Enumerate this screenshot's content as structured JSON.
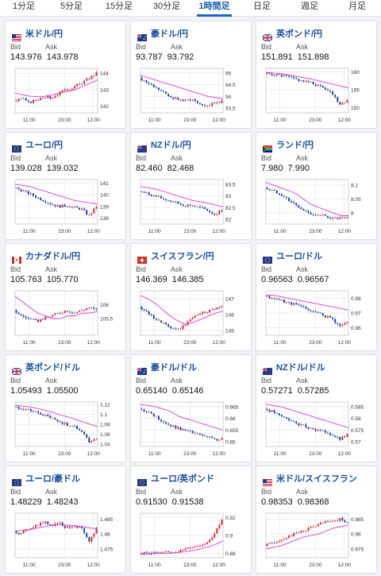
{
  "tabs": [
    {
      "label": "1分足",
      "active": false
    },
    {
      "label": "5分足",
      "active": false
    },
    {
      "label": "15分足",
      "active": false
    },
    {
      "label": "30分足",
      "active": false
    },
    {
      "label": "1時間足",
      "active": true
    },
    {
      "label": "日足",
      "active": false
    },
    {
      "label": "週足",
      "active": false
    },
    {
      "label": "月足",
      "active": false
    }
  ],
  "labels": {
    "bid": "Bid",
    "ask": "Ask"
  },
  "colors": {
    "up": "#e8202e",
    "down": "#1a3f9e",
    "ma": "#d63ad6",
    "grid": "#d9dde2",
    "link": "#1a4fa0"
  },
  "cards": [
    {
      "pair": "米ドル/円",
      "flag": "us",
      "bid": "143.976",
      "ask": "143.978",
      "chart_data": {
        "type": "candlestick",
        "x_ticks": [
          "11:00",
          "23:00",
          "12:00"
        ],
        "y_ticks": [
          "144",
          "143",
          "142"
        ],
        "y_range": [
          141.6,
          144.3
        ],
        "trend": [
          142.3,
          142.5,
          142.2,
          142.4,
          142.6,
          142.5,
          142.8,
          143.0,
          143.2,
          143.4,
          143.7,
          144.0
        ],
        "ma": [
          142.8,
          142.7,
          142.6,
          142.6,
          142.6,
          142.7,
          142.8,
          142.9,
          143.0,
          143.2,
          143.4,
          143.6
        ]
      }
    },
    {
      "pair": "豪ドル/円",
      "flag": "au",
      "bid": "93.787",
      "ask": "93.792",
      "chart_data": {
        "type": "candlestick",
        "x_ticks": [
          "11:00",
          "23:00",
          "12:00"
        ],
        "y_ticks": [
          "95",
          "94.5",
          "94",
          "93.5"
        ],
        "y_range": [
          93.3,
          95.2
        ],
        "trend": [
          94.8,
          94.6,
          94.4,
          94.2,
          94.0,
          93.9,
          93.8,
          93.9,
          93.7,
          93.6,
          93.7,
          93.8
        ],
        "ma": [
          94.9,
          94.8,
          94.7,
          94.6,
          94.5,
          94.4,
          94.3,
          94.2,
          94.1,
          94.0,
          93.95,
          93.9
        ]
      }
    },
    {
      "pair": "英ポンド/円",
      "flag": "gb",
      "bid": "151.891",
      "ask": "151.898",
      "chart_data": {
        "type": "candlestick",
        "x_ticks": [
          "11:00",
          "23:00",
          "12:00"
        ],
        "y_ticks": [
          "160",
          "155",
          "150"
        ],
        "y_range": [
          148.5,
          161
        ],
        "trend": [
          159.5,
          159.3,
          159.0,
          158.6,
          158.0,
          157.5,
          157.0,
          156.2,
          155.5,
          154.0,
          151.0,
          152.0
        ],
        "ma": [
          159.8,
          159.7,
          159.5,
          159.2,
          158.8,
          158.4,
          158.0,
          157.5,
          157.0,
          156.5,
          156.0,
          155.5
        ]
      }
    },
    {
      "pair": "ユーロ/円",
      "flag": "eu",
      "bid": "139.028",
      "ask": "139.032",
      "chart_data": {
        "type": "candlestick",
        "x_ticks": [
          "11:00",
          "23:00",
          "12:00"
        ],
        "y_ticks": [
          "141",
          "140",
          "139",
          "138"
        ],
        "y_range": [
          137.5,
          141.3
        ],
        "trend": [
          140.6,
          140.4,
          140.1,
          139.8,
          139.5,
          139.2,
          139.0,
          139.1,
          138.9,
          138.8,
          138.2,
          139.0
        ],
        "ma": [
          140.9,
          140.8,
          140.7,
          140.5,
          140.3,
          140.1,
          139.9,
          139.7,
          139.5,
          139.4,
          139.3,
          139.2
        ]
      }
    },
    {
      "pair": "NZドル/円",
      "flag": "nz",
      "bid": "82.460",
      "ask": "82.468",
      "chart_data": {
        "type": "candlestick",
        "x_ticks": [
          "11:00",
          "23:00",
          "12:00"
        ],
        "y_ticks": [
          "83.5",
          "83",
          "82.5",
          "82"
        ],
        "y_range": [
          81.8,
          83.7
        ],
        "trend": [
          83.2,
          83.1,
          83.0,
          82.9,
          82.8,
          82.7,
          82.6,
          82.6,
          82.5,
          82.4,
          82.2,
          82.4
        ],
        "ma": [
          83.4,
          83.35,
          83.3,
          83.2,
          83.1,
          83.0,
          82.9,
          82.8,
          82.75,
          82.7,
          82.6,
          82.55
        ]
      }
    },
    {
      "pair": "ランド/円",
      "flag": "za",
      "bid": "7.980",
      "ask": "7.990",
      "chart_data": {
        "type": "candlestick",
        "x_ticks": [
          "11:00",
          "23:00",
          "12:00"
        ],
        "y_ticks": [
          "8.1",
          "8.05",
          "8"
        ],
        "y_range": [
          7.96,
          8.12
        ],
        "trend": [
          8.09,
          8.08,
          8.07,
          8.05,
          8.03,
          8.01,
          8.0,
          7.99,
          7.99,
          7.98,
          7.98,
          7.98
        ],
        "ma": [
          8.11,
          8.1,
          8.09,
          8.08,
          8.07,
          8.05,
          8.03,
          8.02,
          8.01,
          8.0,
          7.99,
          7.99
        ]
      }
    },
    {
      "pair": "カナダドル/円",
      "flag": "ca",
      "bid": "105.763",
      "ask": "105.770",
      "chart_data": {
        "type": "candlestick",
        "x_ticks": [
          "11:00",
          "23:00",
          "12:00"
        ],
        "y_ticks": [
          "106",
          "105.5"
        ],
        "y_range": [
          104.9,
          106.5
        ],
        "trend": [
          105.8,
          105.6,
          105.5,
          105.4,
          105.5,
          105.6,
          105.7,
          105.8,
          105.7,
          105.8,
          105.9,
          105.8
        ],
        "ma": [
          106.3,
          106.1,
          105.9,
          105.7,
          105.6,
          105.5,
          105.5,
          105.6,
          105.6,
          105.7,
          105.7,
          105.75
        ]
      }
    },
    {
      "pair": "スイスフラン/円",
      "flag": "ch",
      "bid": "146.369",
      "ask": "146.385",
      "chart_data": {
        "type": "candlestick",
        "x_ticks": [
          "11:00",
          "23:00",
          "12:00"
        ],
        "y_ticks": [
          "147",
          "146",
          "145"
        ],
        "y_range": [
          144.7,
          147.5
        ],
        "trend": [
          146.5,
          146.2,
          145.8,
          145.5,
          145.2,
          145.0,
          145.3,
          145.8,
          146.1,
          146.2,
          146.4,
          146.5
        ],
        "ma": [
          147.2,
          147.0,
          146.7,
          146.3,
          145.9,
          145.6,
          145.4,
          145.5,
          145.7,
          145.9,
          146.1,
          146.2
        ]
      }
    },
    {
      "pair": "ユーロ/ドル",
      "flag": "eu",
      "bid": "0.96563",
      "ask": "0.96567",
      "chart_data": {
        "type": "candlestick",
        "x_ticks": [
          "11:00",
          "23:00",
          "12:00"
        ],
        "y_ticks": [
          "0.98",
          "0.97",
          "0.96"
        ],
        "y_range": [
          0.955,
          0.985
        ],
        "trend": [
          0.981,
          0.98,
          0.979,
          0.977,
          0.976,
          0.974,
          0.972,
          0.97,
          0.968,
          0.966,
          0.961,
          0.964
        ],
        "ma": [
          0.982,
          0.982,
          0.981,
          0.98,
          0.979,
          0.978,
          0.977,
          0.976,
          0.975,
          0.974,
          0.973,
          0.972
        ]
      }
    },
    {
      "pair": "英ポンド/ドル",
      "flag": "gb",
      "bid": "1.05493",
      "ask": "1.05500",
      "chart_data": {
        "type": "candlestick",
        "x_ticks": [
          "11:00",
          "23:00",
          "12:00"
        ],
        "y_ticks": [
          "1.12",
          "1.1",
          "1.08",
          "1.06",
          "1.04"
        ],
        "y_range": [
          1.035,
          1.125
        ],
        "trend": [
          1.115,
          1.112,
          1.108,
          1.104,
          1.098,
          1.092,
          1.085,
          1.08,
          1.075,
          1.068,
          1.045,
          1.052
        ],
        "ma": [
          1.118,
          1.117,
          1.115,
          1.112,
          1.108,
          1.104,
          1.099,
          1.095,
          1.09,
          1.085,
          1.08,
          1.075
        ]
      }
    },
    {
      "pair": "豪ドル/ドル",
      "flag": "au",
      "bid": "0.65140",
      "ask": "0.65146",
      "chart_data": {
        "type": "candlestick",
        "x_ticks": [
          "11:00",
          "23:00",
          "12:00"
        ],
        "y_ticks": [
          "0.665",
          "0.66",
          "0.655",
          "0.65"
        ],
        "y_range": [
          0.648,
          0.667
        ],
        "trend": [
          0.664,
          0.663,
          0.661,
          0.659,
          0.657,
          0.656,
          0.655,
          0.654,
          0.653,
          0.652,
          0.651,
          0.651
        ],
        "ma": [
          0.666,
          0.6655,
          0.665,
          0.664,
          0.663,
          0.661,
          0.66,
          0.659,
          0.658,
          0.657,
          0.656,
          0.655
        ]
      }
    },
    {
      "pair": "NZドル/ドル",
      "flag": "nz",
      "bid": "0.57271",
      "ask": "0.57285",
      "chart_data": {
        "type": "candlestick",
        "x_ticks": [
          "11:00",
          "23:00",
          "12:00"
        ],
        "y_ticks": [
          "0.585",
          "0.58",
          "0.575",
          "0.57"
        ],
        "y_range": [
          0.568,
          0.587
        ],
        "trend": [
          0.584,
          0.583,
          0.581,
          0.58,
          0.578,
          0.577,
          0.576,
          0.575,
          0.574,
          0.573,
          0.571,
          0.573
        ],
        "ma": [
          0.586,
          0.5855,
          0.585,
          0.584,
          0.583,
          0.582,
          0.581,
          0.58,
          0.579,
          0.578,
          0.577,
          0.576
        ]
      }
    },
    {
      "pair": "ユーロ/豪ドル",
      "flag": "eu",
      "bid": "1.48229",
      "ask": "1.48243",
      "chart_data": {
        "type": "candlestick",
        "x_ticks": [
          "11:00",
          "23:00",
          "12:00"
        ],
        "y_ticks": [
          "1.485",
          "1.48",
          "1.475"
        ],
        "y_range": [
          1.472,
          1.487
        ],
        "trend": [
          1.481,
          1.48,
          1.482,
          1.483,
          1.484,
          1.483,
          1.484,
          1.482,
          1.483,
          1.482,
          1.477,
          1.482
        ],
        "ma": [
          1.481,
          1.4812,
          1.4815,
          1.482,
          1.4825,
          1.483,
          1.4832,
          1.483,
          1.4828,
          1.4825,
          1.482,
          1.4818
        ]
      }
    },
    {
      "pair": "ユーロ/英ポンド",
      "flag": "eu",
      "bid": "0.91530",
      "ask": "0.91538",
      "chart_data": {
        "type": "candlestick",
        "x_ticks": [
          "11:00",
          "23:00",
          "12:00"
        ],
        "y_ticks": [
          "0.92",
          "0.9",
          "0.88"
        ],
        "y_range": [
          0.875,
          0.925
        ],
        "trend": [
          0.88,
          0.88,
          0.881,
          0.88,
          0.881,
          0.882,
          0.884,
          0.887,
          0.889,
          0.892,
          0.902,
          0.918
        ],
        "ma": [
          0.879,
          0.879,
          0.88,
          0.88,
          0.88,
          0.881,
          0.882,
          0.883,
          0.885,
          0.887,
          0.89,
          0.894
        ]
      }
    },
    {
      "pair": "米ドル/スイスフラン",
      "flag": "us",
      "bid": "0.98353",
      "ask": "0.98368",
      "chart_data": {
        "type": "candlestick",
        "x_ticks": [
          "11:00",
          "23:00",
          "12:00"
        ],
        "y_ticks": [
          "0.985",
          "0.98",
          "0.975"
        ],
        "y_range": [
          0.972,
          0.987
        ],
        "trend": [
          0.976,
          0.977,
          0.978,
          0.979,
          0.98,
          0.981,
          0.982,
          0.983,
          0.984,
          0.984,
          0.985,
          0.984
        ],
        "ma": [
          0.975,
          0.9755,
          0.976,
          0.977,
          0.978,
          0.979,
          0.9795,
          0.98,
          0.981,
          0.982,
          0.9825,
          0.983
        ]
      }
    }
  ]
}
